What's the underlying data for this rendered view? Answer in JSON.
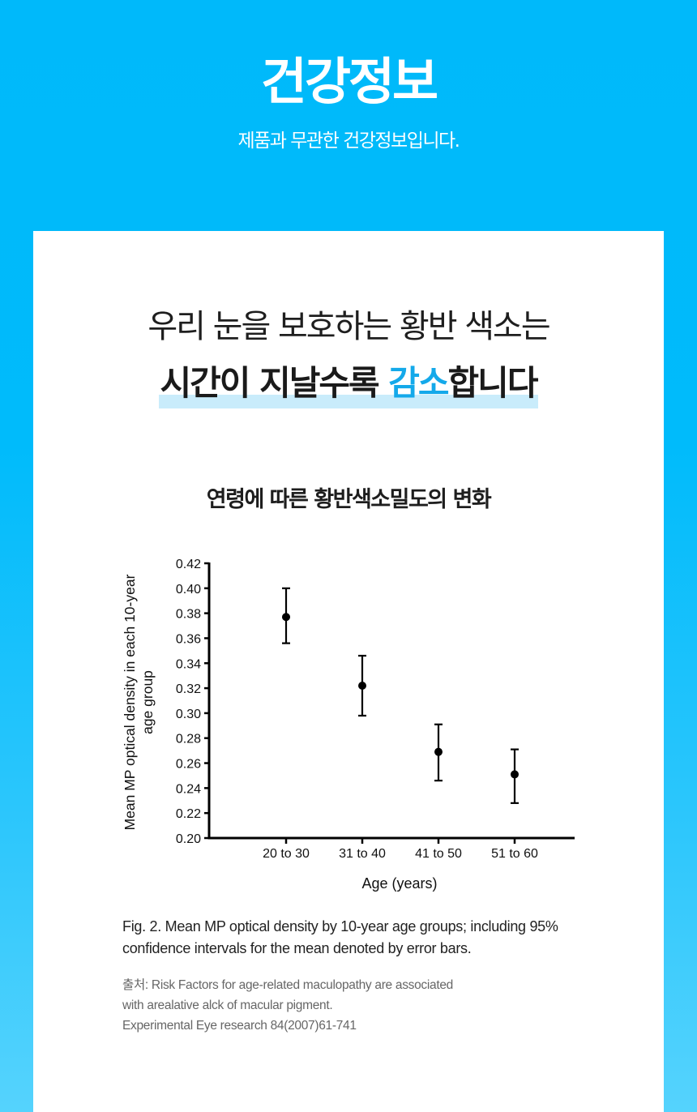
{
  "header": {
    "title": "건강정보",
    "subtitle": "제품과 무관한 건강정보입니다."
  },
  "headline": {
    "line1": "우리 눈을 보호하는 황반 색소는",
    "line2_before": "시간이 지날수록 ",
    "line2_accent": "감소",
    "line2_after": "합니다"
  },
  "chart_section": {
    "title": "연령에 따른 황반색소밀도의 변화",
    "caption": "Fig. 2. Mean MP optical density by 10-year age groups; including 95% confidence intervals for the mean denoted by error bars.",
    "source_lines": [
      "출처: Risk Factors for age-related maculopathy are associated",
      "with arealative alck of macular pigment.",
      "Experimental Eye research 84(2007)61-741"
    ]
  },
  "colors": {
    "brand_blue": "#00b9fa",
    "accent_text": "#14a9ea",
    "highlight_bar": "#c9ecfb"
  },
  "chart_data": {
    "type": "scatter",
    "title": "연령에 따른 황반색소밀도의 변화",
    "xlabel": "Age (years)",
    "ylabel": "Mean MP optical density in each 10-year age group",
    "categories": [
      "20 to 30",
      "31 to 40",
      "41 to 50",
      "51 to 60"
    ],
    "series": [
      {
        "name": "Mean MP optical density",
        "values": [
          0.377,
          0.322,
          0.269,
          0.251
        ],
        "ci_low": [
          0.356,
          0.298,
          0.246,
          0.228
        ],
        "ci_high": [
          0.4,
          0.346,
          0.291,
          0.271
        ]
      }
    ],
    "ylim": [
      0.2,
      0.42
    ],
    "yticks": [
      "0.20",
      "0.22",
      "0.24",
      "0.26",
      "0.28",
      "0.30",
      "0.32",
      "0.34",
      "0.36",
      "0.38",
      "0.40",
      "0.42"
    ],
    "grid": false,
    "legend": "none",
    "error_bars": "95% confidence intervals"
  }
}
